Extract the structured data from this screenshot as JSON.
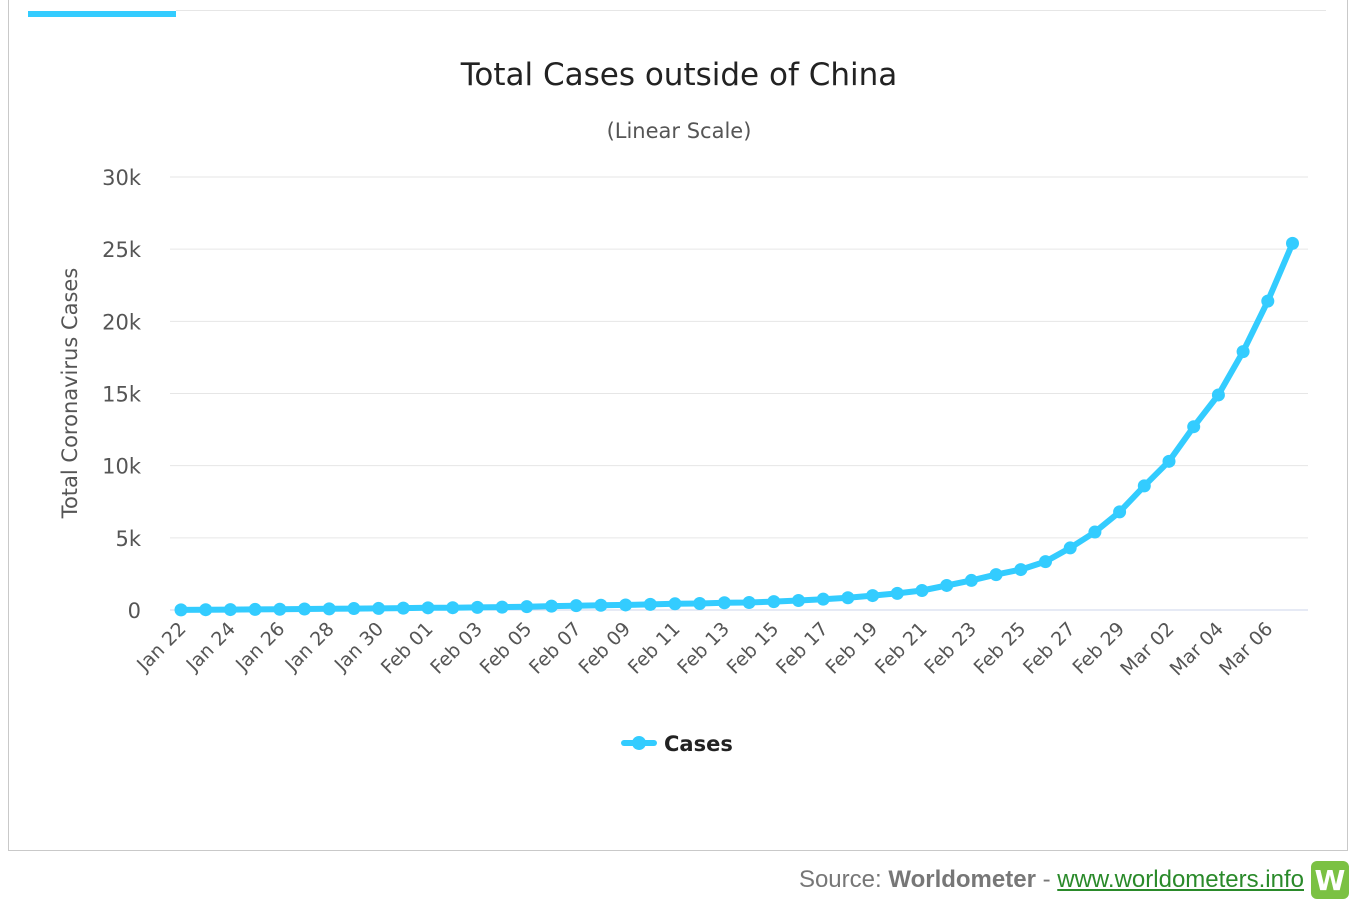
{
  "header": {
    "accent_color": "#33ccff"
  },
  "chart_data": {
    "type": "line",
    "title": "Total Cases outside of China",
    "subtitle": "(Linear Scale)",
    "ylabel": "Total Coronavirus Cases",
    "xlabel": "",
    "ylim": [
      0,
      30000
    ],
    "yticks": [
      0,
      5000,
      10000,
      15000,
      20000,
      25000,
      30000
    ],
    "ytick_labels": [
      "0",
      "5k",
      "10k",
      "15k",
      "20k",
      "25k",
      "30k"
    ],
    "grid": true,
    "legend_position": "bottom-center",
    "line_color": "#33ccff",
    "x": [
      "Jan 22",
      "Jan 23",
      "Jan 24",
      "Jan 25",
      "Jan 26",
      "Jan 27",
      "Jan 28",
      "Jan 29",
      "Jan 30",
      "Jan 31",
      "Feb 01",
      "Feb 02",
      "Feb 03",
      "Feb 04",
      "Feb 05",
      "Feb 06",
      "Feb 07",
      "Feb 08",
      "Feb 09",
      "Feb 10",
      "Feb 11",
      "Feb 12",
      "Feb 13",
      "Feb 14",
      "Feb 15",
      "Feb 16",
      "Feb 17",
      "Feb 18",
      "Feb 19",
      "Feb 20",
      "Feb 21",
      "Feb 22",
      "Feb 23",
      "Feb 24",
      "Feb 25",
      "Feb 26",
      "Feb 27",
      "Feb 28",
      "Feb 29",
      "Mar 01",
      "Mar 02",
      "Mar 03",
      "Mar 04",
      "Mar 05",
      "Mar 06",
      "Mar 07"
    ],
    "xtick_labels": [
      "Jan 22",
      "Jan 24",
      "Jan 26",
      "Jan 28",
      "Jan 30",
      "Feb 01",
      "Feb 03",
      "Feb 05",
      "Feb 07",
      "Feb 09",
      "Feb 11",
      "Feb 13",
      "Feb 15",
      "Feb 17",
      "Feb 19",
      "Feb 21",
      "Feb 23",
      "Feb 25",
      "Feb 27",
      "Feb 29",
      "Mar 02",
      "Mar 04",
      "Mar 06"
    ],
    "series": [
      {
        "name": "Cases",
        "values": [
          10,
          20,
          30,
          40,
          50,
          70,
          80,
          100,
          110,
          130,
          150,
          160,
          180,
          200,
          230,
          270,
          300,
          330,
          350,
          390,
          430,
          450,
          500,
          520,
          580,
          660,
          750,
          850,
          1000,
          1150,
          1350,
          1700,
          2050,
          2450,
          2800,
          3350,
          4300,
          5400,
          6800,
          8600,
          10300,
          12700,
          14900,
          17900,
          21400,
          25400
        ]
      }
    ]
  },
  "footer": {
    "source_prefix": "Source: ",
    "source_name": "Worldometer",
    "separator": " - ",
    "link_text": "www.worldometers.info",
    "logo_letter": "W",
    "logo_color": "#7bc143"
  }
}
